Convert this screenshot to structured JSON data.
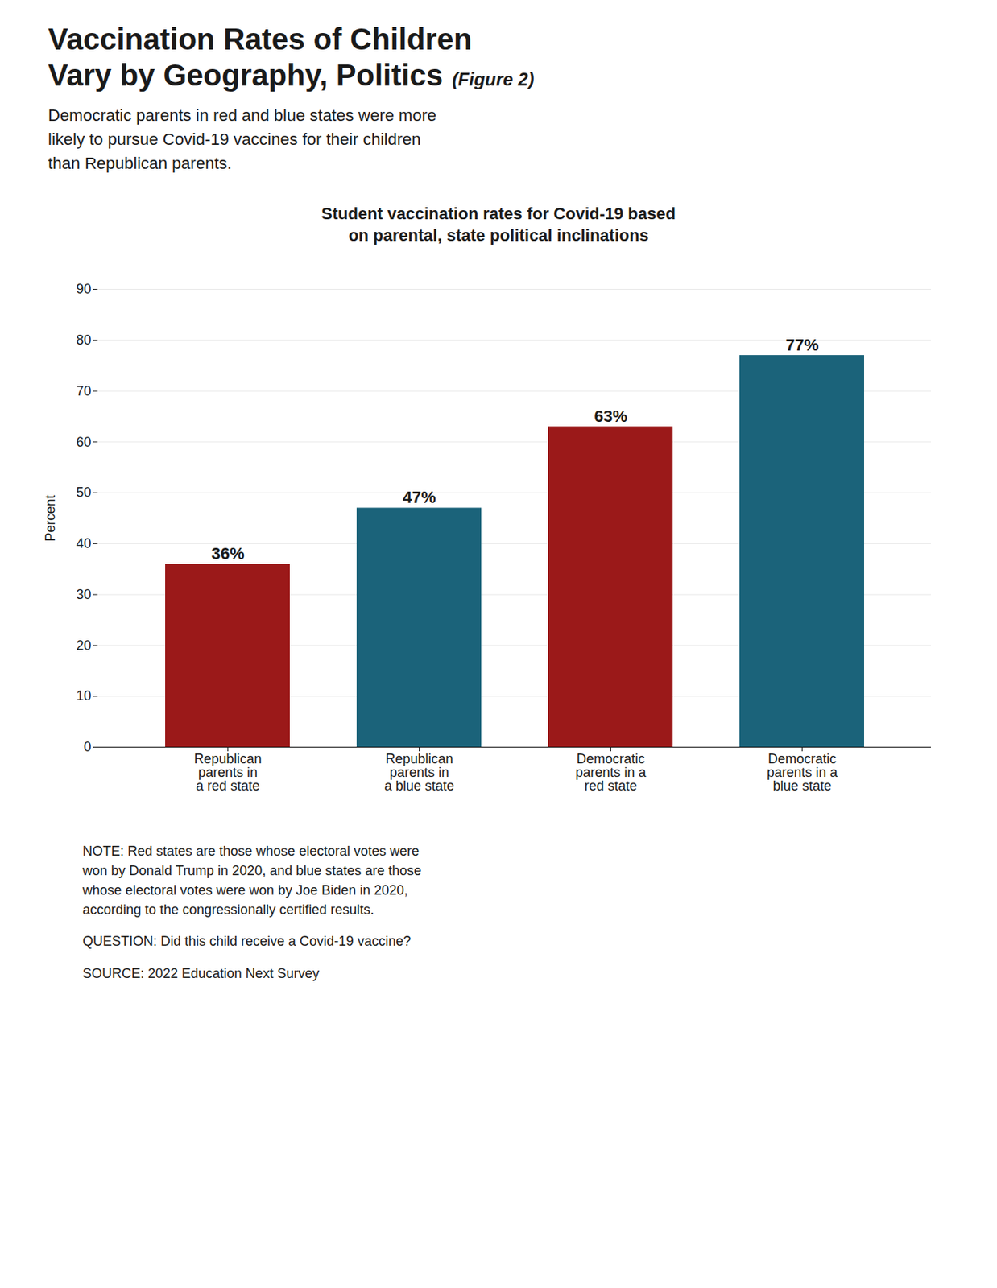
{
  "chart_data": {
    "type": "bar",
    "title": "Vaccination Rates of Children\nVary by Geography, Politics",
    "figure_label": "(Figure 2)",
    "subtitle": "Democratic parents in red and blue states were more\nlikely to pursue Covid-19 vaccines for their children\nthan Republican parents.",
    "chart_title": "Student vaccination rates for Covid-19 based\non parental, state political inclinations",
    "categories": [
      "Republican\nparents in\na red state",
      "Republican\nparents in\na blue state",
      "Democratic\nparents in a\nred state",
      "Democratic\nparents in a\nblue state"
    ],
    "values": [
      36,
      47,
      63,
      77
    ],
    "value_labels": [
      "36%",
      "47%",
      "63%",
      "77%"
    ],
    "data_labels": true,
    "colors": [
      "#9B1919",
      "#1B637A",
      "#9B1919",
      "#1B637A"
    ],
    "ylabel": "Percent",
    "ylim": [
      0,
      90
    ],
    "yticks": [
      0,
      10,
      20,
      30,
      40,
      50,
      60,
      70,
      80,
      90
    ],
    "grid": true,
    "annotations": [
      "NOTE: Red states are those whose electoral votes were\nwon by Donald Trump in 2020, and blue states are those\nwhose electoral votes were won by Joe Biden in 2020,\naccording to the congressionally certified results.",
      "QUESTION: Did this child receive a Covid-19 vaccine?",
      "SOURCE: 2022 Education Next Survey"
    ]
  }
}
